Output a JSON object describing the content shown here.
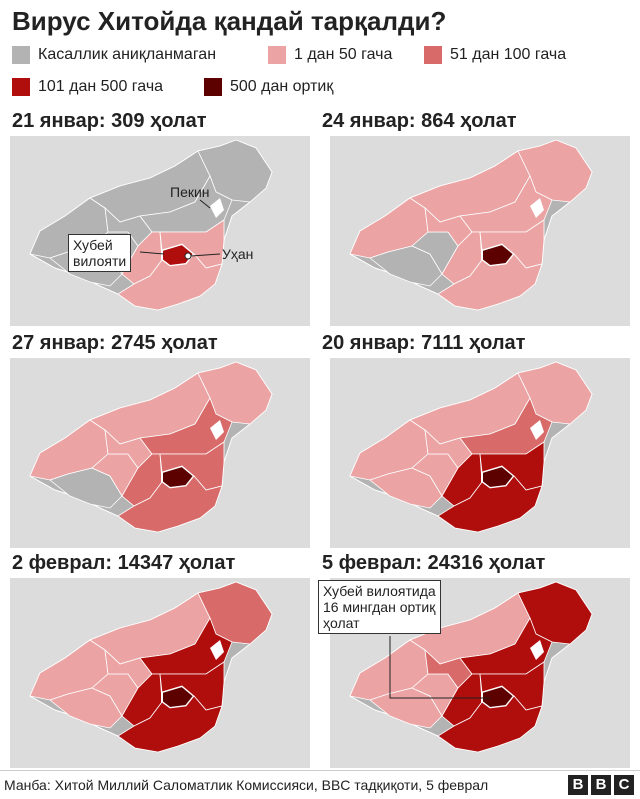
{
  "title": "Вирус Хитойда қандай тарқалди?",
  "legend": [
    {
      "label": "Касаллик аниқланмаган",
      "color": "#b3b3b3"
    },
    {
      "label": "1 дан 50 гача",
      "color": "#eba3a3"
    },
    {
      "label": "51 дан 100 гача",
      "color": "#d86a6a"
    },
    {
      "label": "101 дан 500 гача",
      "color": "#b00d0d"
    },
    {
      "label": "500 дан ортиқ",
      "color": "#5c0000"
    }
  ],
  "panels": [
    {
      "title": "21 январ: 309 ҳолат"
    },
    {
      "title": "24 январ: 864 ҳолат"
    },
    {
      "title": "27 январ: 2745 ҳолат"
    },
    {
      "title": "20 январ: 7111 ҳолат"
    },
    {
      "title": "2 феврал: 14347 ҳолат"
    },
    {
      "title": "5 феврал: 24316 ҳолат"
    }
  ],
  "annotations": {
    "beijing": "Пекин",
    "wuhan": "Уҳан",
    "hubei_line1": "Хубей",
    "hubei_line2": "вилояти",
    "hubei16_line1": "Хубей вилоятида",
    "hubei16_line2": "16 мингдан ортиқ",
    "hubei16_line3": "ҳолат"
  },
  "source": "Манба: Хитой Миллий Саломатлик Комиссияси, BBC тадқиқоти, 5 феврал",
  "brand": [
    "B",
    "B",
    "C"
  ]
}
